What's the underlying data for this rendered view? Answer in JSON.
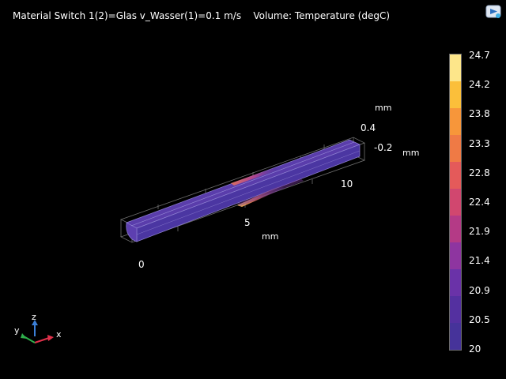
{
  "plot": {
    "title": "Material Switch 1(2)=Glas v_Wasser(1)=0.1 m/s    Volume: Temperature (degC)"
  },
  "axes": {
    "x_unit": "mm",
    "x_ticks": [
      "0",
      "5",
      "10"
    ],
    "y_unit": "mm",
    "y_ticks": [
      "-0.2"
    ],
    "z_unit": "mm",
    "z_ticks": [
      "0.4"
    ]
  },
  "triad": {
    "x_label": "x",
    "y_label": "y",
    "z_label": "z",
    "x_color": "#e0304a",
    "y_color": "#2fae4b",
    "z_color": "#3b7fd6"
  },
  "colorbar": {
    "labels": [
      "24.7",
      "24.2",
      "23.8",
      "23.3",
      "22.8",
      "22.4",
      "21.9",
      "21.4",
      "20.9",
      "20.5",
      "20"
    ],
    "colors": [
      "#fde68a",
      "#fbbf3a",
      "#f7963a",
      "#ef7a45",
      "#e45a5a",
      "#d1476f",
      "#b43a86",
      "#8e35a0",
      "#6a32a8",
      "#5430a0",
      "#46339a"
    ]
  },
  "corner_icon": "comsol-logo-icon"
}
